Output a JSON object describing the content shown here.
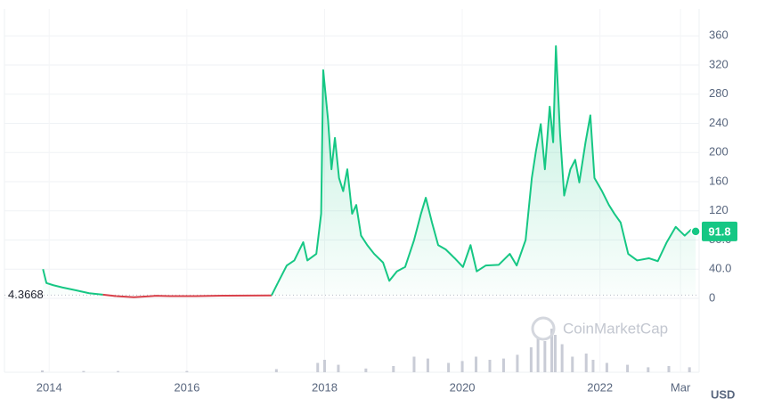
{
  "chart_data": {
    "type": "line",
    "watermark": "CoinMarketCap",
    "currency": "USD",
    "xlim": [
      2013.35,
      2023.44
    ],
    "xticks": [
      2014,
      2016,
      2018,
      2020,
      2022,
      {
        "value": 2023.17,
        "label": "Mar"
      }
    ],
    "ylim": [
      0,
      397
    ],
    "yticks": [
      0,
      {
        "value": 40,
        "label": "40.0"
      },
      {
        "value": 80,
        "label": "80.0"
      },
      120,
      160,
      200,
      240,
      280,
      320,
      360
    ],
    "grid": true,
    "baseline": {
      "value": 4.3668,
      "label": "4.3668"
    },
    "below_color": "#d9404a",
    "series": [
      {
        "color": "#16c784",
        "x": [
          2013.91,
          2013.96,
          2014.06,
          2014.19,
          2014.39,
          2014.58,
          2014.78,
          2014.97,
          2015.23,
          2015.49,
          2015.55,
          2015.75,
          2016.13,
          2016.52,
          2016.91,
          2017.23,
          2017.32,
          2017.45,
          2017.56,
          2017.69,
          2017.75,
          2017.88,
          2017.95,
          2017.98,
          2018.05,
          2018.1,
          2018.15,
          2018.21,
          2018.27,
          2018.33,
          2018.4,
          2018.46,
          2018.53,
          2018.62,
          2018.72,
          2018.85,
          2018.94,
          2019.05,
          2019.17,
          2019.3,
          2019.4,
          2019.47,
          2019.56,
          2019.65,
          2019.76,
          2019.89,
          2020.01,
          2020.12,
          2020.21,
          2020.34,
          2020.53,
          2020.69,
          2020.79,
          2020.92,
          2021.01,
          2021.07,
          2021.14,
          2021.2,
          2021.27,
          2021.32,
          2021.36,
          2021.42,
          2021.48,
          2021.57,
          2021.64,
          2021.7,
          2021.79,
          2021.86,
          2021.92,
          2022.03,
          2022.13,
          2022.21,
          2022.3,
          2022.41,
          2022.54,
          2022.71,
          2022.84,
          2022.97,
          2023.1,
          2023.23,
          2023.32,
          2023.39
        ],
        "values": [
          40,
          21,
          18,
          15,
          11,
          7,
          5,
          3,
          1.5,
          3,
          3.5,
          3,
          3,
          3.7,
          3.8,
          4,
          21,
          45,
          52,
          77,
          52,
          61,
          116,
          313,
          245,
          177,
          220,
          165,
          147,
          177,
          116,
          128,
          86,
          73,
          61,
          49,
          24,
          37,
          43,
          80,
          116,
          138,
          104,
          73,
          67,
          55,
          43,
          73,
          37,
          45,
          46,
          61,
          45,
          80,
          165,
          202,
          239,
          177,
          263,
          214,
          346,
          226,
          141,
          177,
          190,
          159,
          214,
          251,
          165,
          147,
          128,
          116,
          104,
          61,
          52,
          55,
          51,
          77,
          98,
          86,
          94,
          91.8
        ]
      }
    ],
    "volume": {
      "color": "#c9ccd6",
      "x": [
        2013.9,
        2014.5,
        2015,
        2016,
        2017.3,
        2017.9,
        2018.0,
        2018.2,
        2018.6,
        2019.0,
        2019.3,
        2019.5,
        2019.8,
        2020.0,
        2020.2,
        2020.4,
        2020.6,
        2020.8,
        2021.0,
        2021.1,
        2021.2,
        2021.3,
        2021.35,
        2021.45,
        2021.6,
        2021.8,
        2021.9,
        2022.1,
        2022.4,
        2022.7,
        2023.0,
        2023.3
      ],
      "values": [
        3,
        2,
        2,
        2,
        5,
        15,
        20,
        12,
        6,
        10,
        25,
        22,
        15,
        18,
        25,
        20,
        22,
        28,
        40,
        55,
        50,
        70,
        60,
        45,
        25,
        30,
        20,
        15,
        12,
        8,
        10,
        8
      ]
    }
  }
}
